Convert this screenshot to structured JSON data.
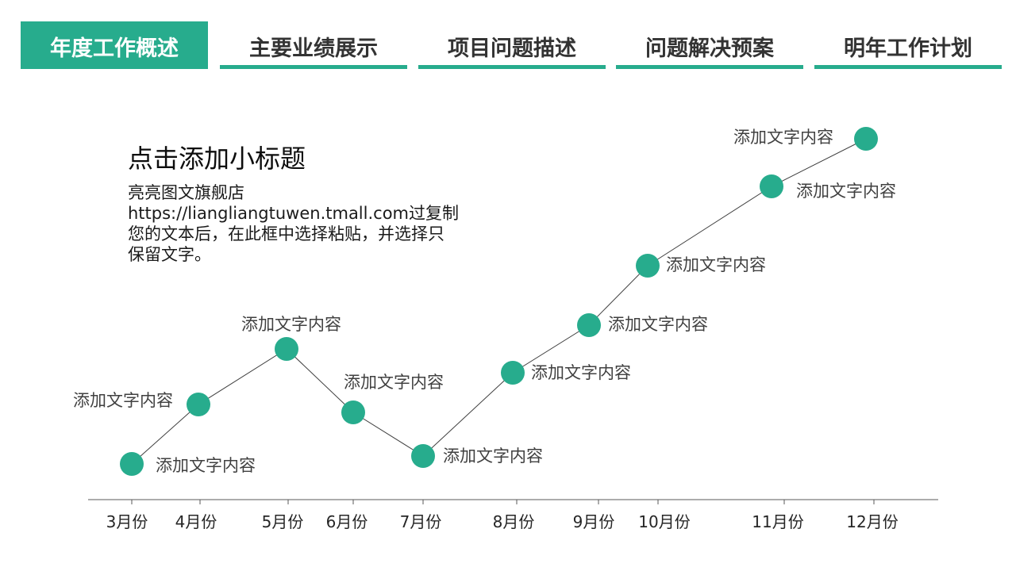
{
  "colors": {
    "accent": "#27ac8d",
    "line": "#3f3f3f"
  },
  "tabs": [
    {
      "label": "年度工作概述",
      "active": true
    },
    {
      "label": "主要业绩展示",
      "active": false
    },
    {
      "label": "项目问题描述",
      "active": false
    },
    {
      "label": "问题解决预案",
      "active": false
    },
    {
      "label": "明年工作计划",
      "active": false
    }
  ],
  "content": {
    "subtitle": "点击添加小标题",
    "body_lines": [
      "亮亮图文旗舰店",
      "https://liangliangtuwen.tmall.com过复制",
      "您的文本后，在此框中选择粘贴，并选择只",
      "保留文字。"
    ]
  },
  "chart_data": {
    "type": "line",
    "categories": [
      "3月份",
      "4月份",
      "5月份",
      "6月份",
      "7月份",
      "8月份",
      "9月份",
      "10月份",
      "11月份",
      "12月份"
    ],
    "values": [
      9,
      24,
      38,
      22,
      11,
      32,
      44,
      59,
      79,
      91
    ],
    "point_labels": [
      "添加文字内容",
      "添加文字内容",
      "添加文字内容",
      "添加文字内容",
      "添加文字内容",
      "添加文字内容",
      "添加文字内容",
      "添加文字内容",
      "添加文字内容",
      "添加文字内容"
    ],
    "ylim": [
      0,
      100
    ],
    "grid": false
  }
}
